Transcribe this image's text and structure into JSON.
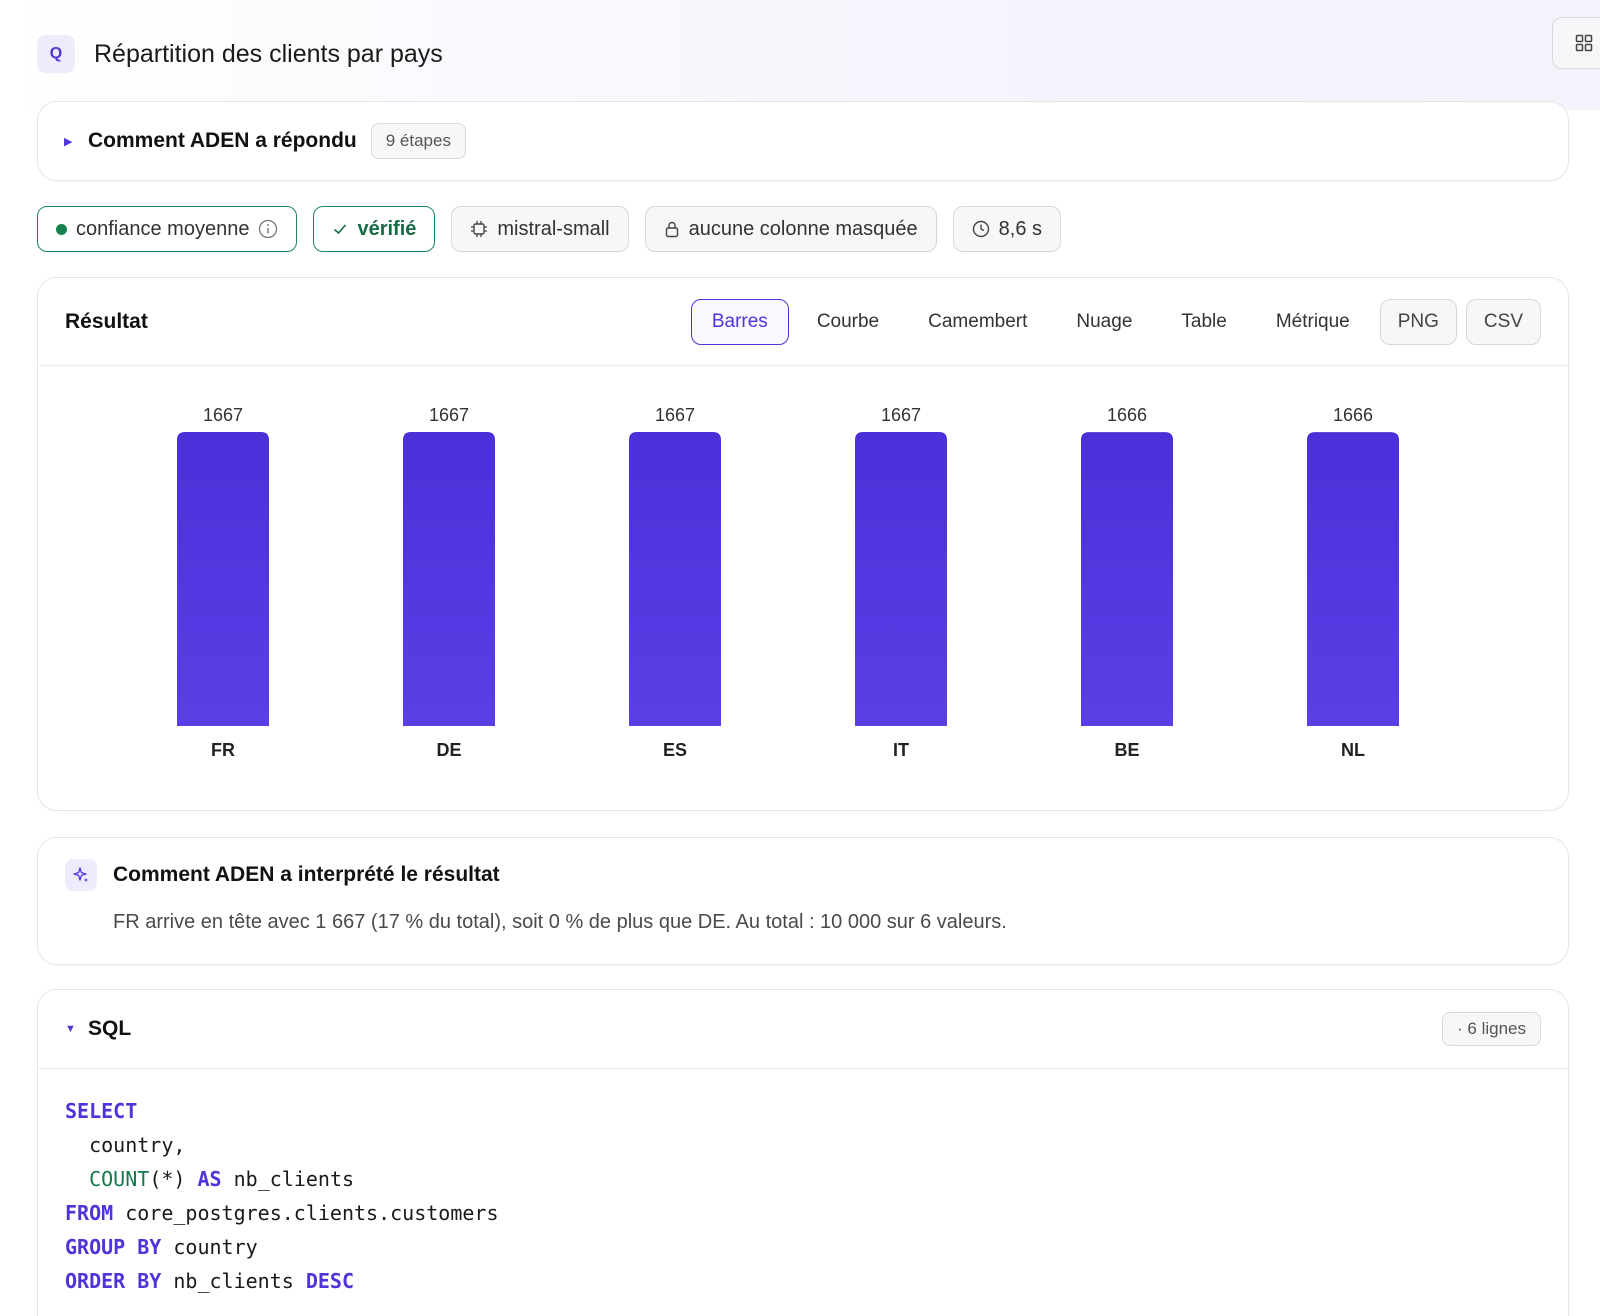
{
  "header": {
    "badge": "Q",
    "title": "Répartition des clients par pays"
  },
  "steps": {
    "title": "Comment ADEN a répondu",
    "count_label": "9 étapes"
  },
  "chips": {
    "confidence": "confiance moyenne",
    "verified": "vérifié",
    "model": "mistral-small",
    "masked": "aucune colonne masquée",
    "duration": "8,6 s"
  },
  "result": {
    "title": "Résultat",
    "tabs": [
      "Barres",
      "Courbe",
      "Camembert",
      "Nuage",
      "Table",
      "Métrique"
    ],
    "active_tab": "Barres",
    "exports": [
      "PNG",
      "CSV"
    ]
  },
  "chart_data": {
    "type": "bar",
    "categories": [
      "FR",
      "DE",
      "ES",
      "IT",
      "BE",
      "NL"
    ],
    "values": [
      1667,
      1667,
      1667,
      1667,
      1666,
      1666
    ],
    "data_labels": true,
    "bar_color_top": "#4b2fd8",
    "bar_color_bottom": "#5b3ee6",
    "grid": false,
    "legend": false
  },
  "interpretation": {
    "title": "Comment ADEN a interprété le résultat",
    "text": "FR arrive en tête avec 1 667 (17 % du total), soit 0 % de plus que DE. Au total : 10 000 sur 6 valeurs."
  },
  "sql": {
    "title": "SQL",
    "lines_label": "· 6 lignes",
    "lines": [
      [
        {
          "t": "SELECT",
          "k": "kw"
        }
      ],
      [
        {
          "t": "  country,",
          "k": ""
        }
      ],
      [
        {
          "t": "  ",
          "k": ""
        },
        {
          "t": "COUNT",
          "k": "fn"
        },
        {
          "t": "(*) ",
          "k": ""
        },
        {
          "t": "AS",
          "k": "kw"
        },
        {
          "t": " nb_clients",
          "k": ""
        }
      ],
      [
        {
          "t": "FROM",
          "k": "kw"
        },
        {
          "t": " core_postgres.clients.customers",
          "k": ""
        }
      ],
      [
        {
          "t": "GROUP BY",
          "k": "kw"
        },
        {
          "t": " country",
          "k": ""
        }
      ],
      [
        {
          "t": "ORDER BY",
          "k": "kw"
        },
        {
          "t": " nb_clients ",
          "k": ""
        },
        {
          "t": "DESC",
          "k": "kw"
        }
      ]
    ]
  },
  "colors": {
    "accent": "#4f35d9",
    "success": "#1e8a57"
  }
}
